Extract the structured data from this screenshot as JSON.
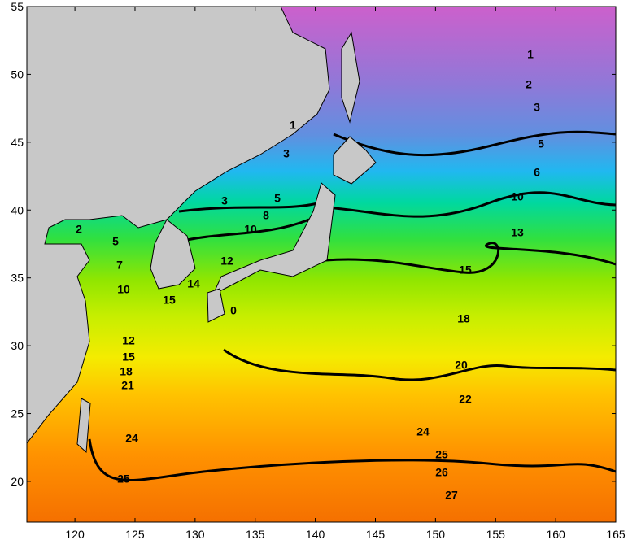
{
  "map": {
    "xlim": [
      116,
      165
    ],
    "ylim": [
      17,
      55
    ],
    "xticks": [
      120,
      125,
      130,
      135,
      140,
      145,
      150,
      155,
      160,
      165
    ],
    "yticks": [
      20,
      25,
      30,
      35,
      40,
      45,
      50,
      55
    ],
    "contour_labels": [
      1,
      2,
      3,
      5,
      6,
      10,
      13,
      15,
      18,
      20,
      22,
      24,
      25,
      26,
      27,
      1,
      3,
      3,
      5,
      8,
      10,
      12,
      14,
      15,
      2,
      5,
      7,
      10,
      12,
      15,
      18,
      21,
      24,
      25,
      0
    ]
  }
}
